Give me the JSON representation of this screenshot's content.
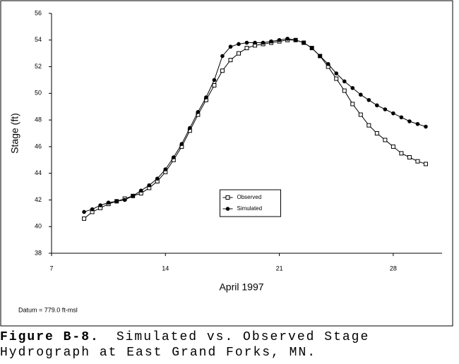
{
  "chart_data": {
    "type": "line",
    "ylabel": "Stage (ft)",
    "xlabel": "April 1997",
    "note": "Datum = 779.0 ft-msl",
    "x": [
      9,
      9.5,
      10,
      10.5,
      11,
      11.5,
      12,
      12.5,
      13,
      13.5,
      14,
      14.5,
      15,
      15.5,
      16,
      16.5,
      17,
      17.5,
      18,
      18.5,
      19,
      19.5,
      20,
      20.5,
      21,
      21.5,
      22,
      22.5,
      23,
      23.5,
      24,
      24.5,
      25,
      25.5,
      26,
      26.5,
      27,
      27.5,
      28,
      28.5,
      29,
      29.5,
      30
    ],
    "series": [
      {
        "name": "Observed",
        "color": "#000000",
        "marker": "open-square",
        "values": [
          40.6,
          41.1,
          41.4,
          41.7,
          41.9,
          42.1,
          42.3,
          42.5,
          42.9,
          43.4,
          44.1,
          45.0,
          46.0,
          47.2,
          48.4,
          49.5,
          50.6,
          51.7,
          52.5,
          53.0,
          53.4,
          53.6,
          53.7,
          53.8,
          53.9,
          54.0,
          54.0,
          53.8,
          53.4,
          52.8,
          52.0,
          51.1,
          50.2,
          49.2,
          48.4,
          47.6,
          47.0,
          46.5,
          46.0,
          45.5,
          45.2,
          44.9,
          44.7
        ]
      },
      {
        "name": "Simulated",
        "color": "#000000",
        "marker": "filled-circle",
        "values": [
          41.1,
          41.3,
          41.6,
          41.8,
          41.9,
          42.0,
          42.3,
          42.7,
          43.1,
          43.6,
          44.3,
          45.2,
          46.2,
          47.4,
          48.6,
          49.7,
          51.0,
          52.8,
          53.5,
          53.7,
          53.8,
          53.8,
          53.8,
          53.9,
          54.0,
          54.1,
          54.0,
          53.8,
          53.4,
          52.8,
          52.2,
          51.5,
          50.9,
          50.4,
          49.9,
          49.5,
          49.1,
          48.8,
          48.5,
          48.2,
          47.9,
          47.7,
          47.5
        ]
      }
    ],
    "xlim": [
      7,
      31
    ],
    "xticks": [
      7,
      14,
      21,
      28
    ],
    "ylim": [
      38,
      56
    ],
    "yticks": [
      38,
      40,
      42,
      44,
      46,
      48,
      50,
      52,
      54,
      56
    ],
    "grid": false,
    "legend": "lower center"
  },
  "caption": {
    "label": "Figure B-8.",
    "text": "Simulated vs. Observed Stage Hydrograph at East Grand Forks, MN."
  }
}
